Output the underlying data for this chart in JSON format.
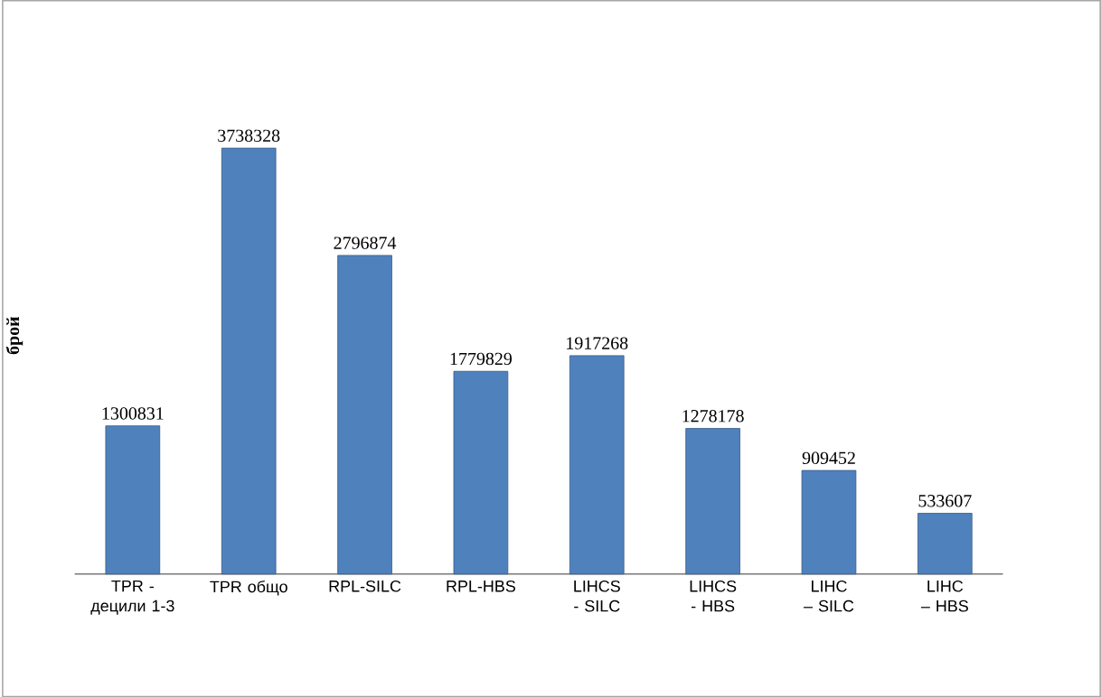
{
  "chart_data": {
    "type": "bar",
    "ylabel": "брой",
    "categories": [
      "TPR - децили 1-3",
      "TPR общо",
      "RPL-SILC",
      "RPL-HBS",
      "LIHCS - SILC",
      "LIHCS - HBS",
      "LIHC – SILC",
      "LIHC – HBS"
    ],
    "values": [
      1300831,
      3738328,
      2796874,
      1779829,
      1917268,
      1278178,
      909452,
      533607
    ],
    "color": "#4f81bd",
    "data_labels": true
  }
}
